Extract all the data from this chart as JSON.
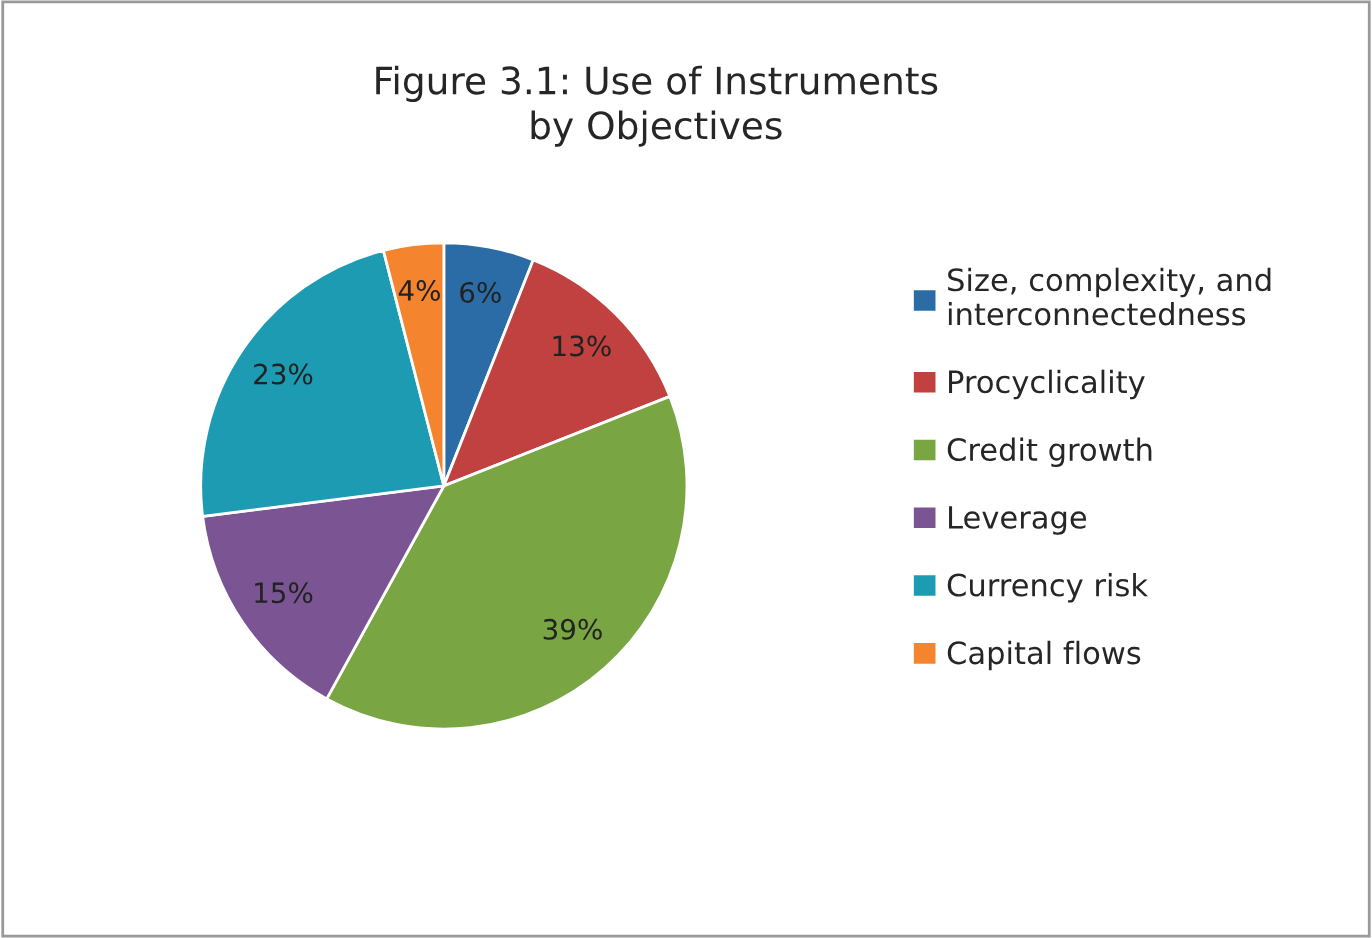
{
  "chart_data": {
    "type": "pie",
    "title": "Figure 3.1: Use of Instruments\nby Objectives",
    "categories": [
      "Size, complexity, and interconnectedness",
      "Procyclicality",
      "Credit growth",
      "Leverage",
      "Currency risk",
      "Capital flows"
    ],
    "values": [
      6,
      13,
      39,
      15,
      23,
      4
    ],
    "colors": [
      "#2c6ca6",
      "#c0413f",
      "#7aa543",
      "#7b5593",
      "#1d9bb2",
      "#f5842e"
    ],
    "value_labels": [
      "6%",
      "13%",
      "39%",
      "15%",
      "23%",
      "4%"
    ],
    "legend": "right"
  }
}
